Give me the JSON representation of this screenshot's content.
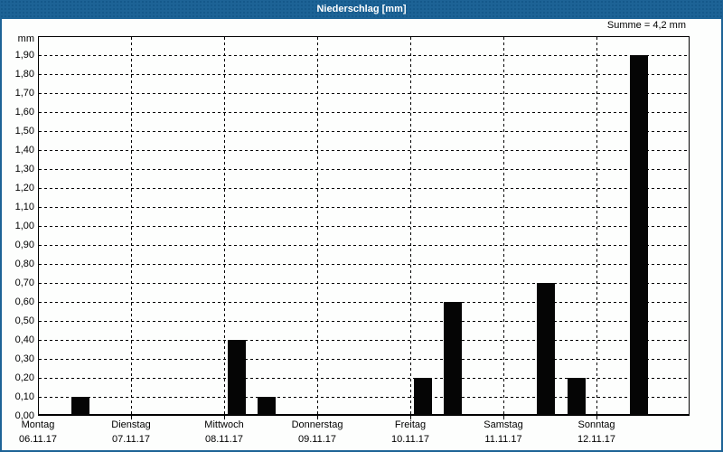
{
  "window": {
    "title": "Niederschlag [mm]"
  },
  "colors": {
    "titlebar_bg": "#1D6396",
    "titlebar_dot": "#14588A",
    "frame_border": "#1D6396",
    "title_text": "#FFFFFF",
    "axis_text": "#000000",
    "grid_line": "#000000",
    "bar_fill": "#050505",
    "plot_bg": "#FDFEFD"
  },
  "chart_data": {
    "type": "bar",
    "title": "Niederschlag [mm]",
    "ylabel": "mm",
    "summary": "Summe = 4,2 mm",
    "total_mm": 4.2,
    "ylim": [
      0,
      2.0
    ],
    "ytick_step": 0.1,
    "grid": true,
    "ytick_labels": [
      "0,00",
      "0,10",
      "0,20",
      "0,30",
      "0,40",
      "0,50",
      "0,60",
      "0,70",
      "0,80",
      "0,90",
      "1,00",
      "1,10",
      "1,20",
      "1,30",
      "1,40",
      "1,50",
      "1,60",
      "1,70",
      "1,80",
      "1,90"
    ],
    "days": [
      {
        "name": "Montag",
        "date": "06.11.17"
      },
      {
        "name": "Dienstag",
        "date": "07.11.17"
      },
      {
        "name": "Mittwoch",
        "date": "08.11.17"
      },
      {
        "name": "Donnerstag",
        "date": "09.11.17"
      },
      {
        "name": "Freitag",
        "date": "10.11.17"
      },
      {
        "name": "Samstag",
        "date": "11.11.17"
      },
      {
        "name": "Sonntag",
        "date": "12.11.17"
      }
    ],
    "bins_per_day": 3,
    "bars": [
      {
        "date": "06.11.17",
        "day_index": 0,
        "bin": 1,
        "value_mm": 0.1
      },
      {
        "date": "08.11.17",
        "day_index": 2,
        "bin": 0,
        "value_mm": 0.4
      },
      {
        "date": "08.11.17",
        "day_index": 2,
        "bin": 1,
        "value_mm": 0.1
      },
      {
        "date": "10.11.17",
        "day_index": 4,
        "bin": 0,
        "value_mm": 0.2
      },
      {
        "date": "10.11.17",
        "day_index": 4,
        "bin": 1,
        "value_mm": 0.6
      },
      {
        "date": "11.11.17",
        "day_index": 5,
        "bin": 1,
        "value_mm": 0.7
      },
      {
        "date": "11.11.17",
        "day_index": 5,
        "bin": 2,
        "value_mm": 0.2
      },
      {
        "date": "12.11.17",
        "day_index": 6,
        "bin": 1,
        "value_mm": 1.9
      }
    ]
  }
}
